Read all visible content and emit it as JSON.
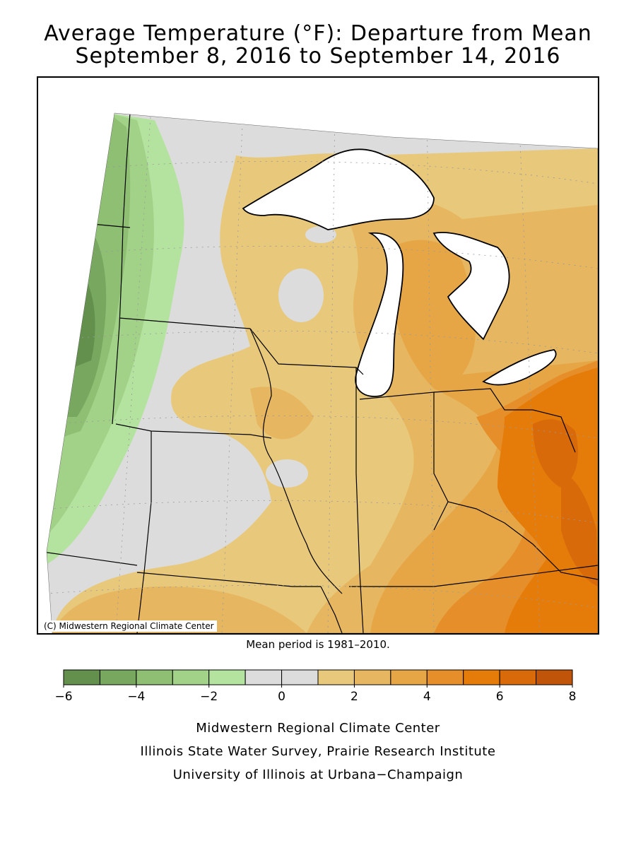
{
  "title": {
    "line1": "Average Temperature (°F): Departure from Mean",
    "line2": "September 8, 2016 to September 14, 2016"
  },
  "map": {
    "copyright": "(C) Midwestern Regional Climate Center",
    "mean_period": "Mean period is 1981–2010.",
    "colors": {
      "lake": "#ffffff",
      "border": "#000000",
      "grid": "#999999"
    }
  },
  "legend": {
    "bins": [
      {
        "from": -6,
        "to": -5,
        "color": "#63904c"
      },
      {
        "from": -5,
        "to": -4,
        "color": "#78a860"
      },
      {
        "from": -4,
        "to": -3,
        "color": "#8ebf73"
      },
      {
        "from": -3,
        "to": -2,
        "color": "#a2d288"
      },
      {
        "from": -2,
        "to": -1,
        "color": "#b4e3a0"
      },
      {
        "from": -1,
        "to": 0,
        "color": "#dcdcdc"
      },
      {
        "from": 0,
        "to": 1,
        "color": "#dcdcdc"
      },
      {
        "from": 1,
        "to": 2,
        "color": "#e8c87a"
      },
      {
        "from": 2,
        "to": 3,
        "color": "#e6b660"
      },
      {
        "from": 3,
        "to": 4,
        "color": "#e6a645"
      },
      {
        "from": 4,
        "to": 5,
        "color": "#e68f2a"
      },
      {
        "from": 5,
        "to": 6,
        "color": "#e57c0a"
      },
      {
        "from": 6,
        "to": 7,
        "color": "#d86a0a"
      },
      {
        "from": 7,
        "to": 8,
        "color": "#c05408"
      }
    ],
    "tick_labels": [
      "−6",
      "−4",
      "−2",
      "0",
      "2",
      "4",
      "6",
      "8"
    ]
  },
  "credits": {
    "line1": "Midwestern Regional Climate Center",
    "line2": "Illinois State Water Survey, Prairie Research Institute",
    "line3": "University of Illinois at Urbana−Champaign"
  }
}
